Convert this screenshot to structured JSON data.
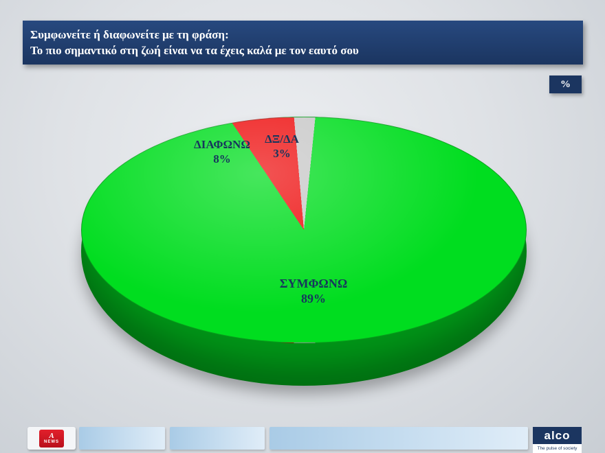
{
  "header": {
    "line1": "Συμφωνείτε ή διαφωνείτε με τη φράση:",
    "line2": "Το πιο σημαντικό στη ζωή είναι να τα έχεις καλά με τον εαυτό σου"
  },
  "unit_badge": "%",
  "chart_data": {
    "type": "pie",
    "style": "3d",
    "title": "Συμφωνείτε ή διαφωνείτε με τη φράση: Το πιο σημαντικό στη ζωή είναι να τα έχεις καλά με τον εαυτό σου",
    "unit": "%",
    "legend": false,
    "labels_position": "on-slices",
    "start_angle_deg": -5,
    "clockwise_order_from_top": [
      "ΔΞ/ΔΑ",
      "ΣΥΜΦΩΝΩ",
      "ΔΙΑΦΩΝΩ"
    ],
    "slices": [
      {
        "label": "ΣΥΜΦΩΝΩ",
        "value": 89,
        "pct_label": "89%",
        "color": "#00dd1f",
        "depth_color": "#009417"
      },
      {
        "label": "ΔΙΑΦΩΝΩ",
        "value": 8,
        "pct_label": "8%",
        "color": "#ee1111",
        "depth_color": "#9e0c0c"
      },
      {
        "label": "ΔΞ/ΔΑ",
        "value": 3,
        "pct_label": "3%",
        "color": "#c8c8c8",
        "depth_color": "#8e8e8e"
      }
    ]
  },
  "footer": {
    "channel_logo": {
      "symbol": "A",
      "label": "NEWS"
    },
    "brand": {
      "name": "alco",
      "tagline": "The pulse of society"
    }
  }
}
